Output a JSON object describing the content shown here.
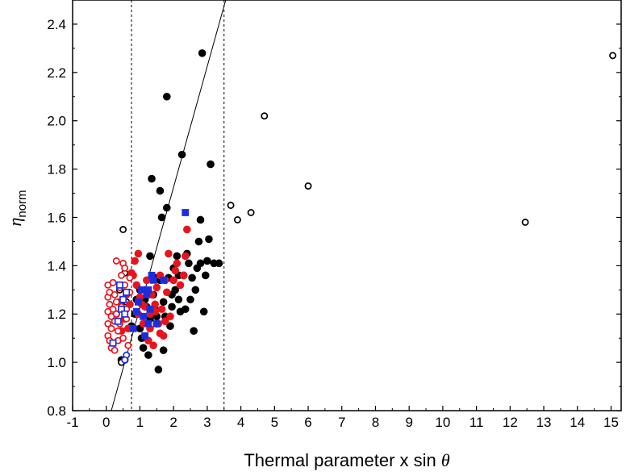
{
  "chart_data": {
    "type": "scatter",
    "xlabel_text": "Thermal parameter x sin ",
    "xlabel_symbol": "θ",
    "ylabel_symbol": "η",
    "ylabel_sub": "norm",
    "xlim": [
      -1,
      15.3
    ],
    "ylim": [
      0.8,
      2.5
    ],
    "x_ticks": [
      "-1",
      "0",
      "1",
      "2",
      "3",
      "4",
      "5",
      "6",
      "7",
      "8",
      "9",
      "10",
      "11",
      "12",
      "13",
      "14",
      "15"
    ],
    "y_ticks": [
      "0.8",
      "1.0",
      "1.2",
      "1.4",
      "1.6",
      "1.8",
      "2.0",
      "2.2",
      "2.4"
    ],
    "reference_lines": {
      "vertical_dashed": [
        0.75,
        3.5
      ],
      "fit_line": [
        [
          0.15,
          0.8
        ],
        [
          3.55,
          2.5
        ]
      ]
    },
    "colors": {
      "black": "#000000",
      "red": "#e8141c",
      "blue": "#1a2ee0"
    },
    "series": [
      {
        "marker": "filled-circle",
        "color": "#000000",
        "points": [
          [
            0.45,
            1.01
          ],
          [
            0.55,
            1.01
          ],
          [
            0.75,
            1.15
          ],
          [
            0.85,
            1.2
          ],
          [
            0.9,
            1.26
          ],
          [
            1.0,
            1.3
          ],
          [
            1.0,
            1.14
          ],
          [
            1.05,
            1.1
          ],
          [
            1.1,
            1.06
          ],
          [
            1.2,
            1.23
          ],
          [
            1.25,
            1.03
          ],
          [
            1.3,
            1.44
          ],
          [
            1.35,
            1.76
          ],
          [
            1.4,
            1.28
          ],
          [
            1.45,
            1.22
          ],
          [
            1.5,
            1.19
          ],
          [
            1.5,
            1.16
          ],
          [
            1.55,
            0.97
          ],
          [
            1.6,
            1.71
          ],
          [
            1.65,
            1.6
          ],
          [
            1.6,
            1.34
          ],
          [
            1.7,
            1.25
          ],
          [
            1.75,
            1.19
          ],
          [
            1.7,
            1.05
          ],
          [
            1.8,
            2.1
          ],
          [
            1.8,
            1.64
          ],
          [
            1.85,
            1.35
          ],
          [
            1.9,
            1.15
          ],
          [
            1.95,
            1.23
          ],
          [
            2.0,
            1.39
          ],
          [
            2.05,
            1.3
          ],
          [
            2.1,
            1.44
          ],
          [
            2.15,
            1.26
          ],
          [
            2.2,
            1.21
          ],
          [
            2.25,
            1.86
          ],
          [
            2.3,
            1.36
          ],
          [
            2.35,
            1.22
          ],
          [
            2.4,
            1.45
          ],
          [
            2.45,
            1.41
          ],
          [
            2.5,
            1.26
          ],
          [
            2.55,
            1.35
          ],
          [
            2.6,
            1.13
          ],
          [
            2.65,
            1.3
          ],
          [
            2.7,
            1.39
          ],
          [
            2.75,
            1.5
          ],
          [
            2.8,
            1.59
          ],
          [
            2.8,
            1.41
          ],
          [
            2.85,
            2.28
          ],
          [
            2.9,
            1.21
          ],
          [
            2.95,
            1.36
          ],
          [
            3.0,
            1.42
          ],
          [
            3.05,
            1.51
          ],
          [
            3.1,
            1.82
          ],
          [
            3.2,
            1.41
          ],
          [
            3.35,
            1.41
          ],
          [
            1.15,
            1.26
          ],
          [
            1.3,
            1.18
          ],
          [
            1.45,
            1.35
          ],
          [
            1.95,
            1.28
          ],
          [
            2.15,
            1.36
          ]
        ]
      },
      {
        "marker": "open-circle",
        "color": "#000000",
        "points": [
          [
            0.5,
            1.55
          ],
          [
            0.45,
            1.0
          ],
          [
            0.4,
            1.3
          ],
          [
            0.55,
            1.37
          ],
          [
            0.6,
            1.25
          ],
          [
            3.7,
            1.65
          ],
          [
            3.9,
            1.59
          ],
          [
            4.3,
            1.62
          ],
          [
            4.7,
            2.02
          ],
          [
            6.0,
            1.73
          ],
          [
            12.45,
            1.58
          ],
          [
            15.05,
            2.27
          ]
        ]
      },
      {
        "marker": "filled-circle",
        "color": "#e8141c",
        "points": [
          [
            0.3,
            1.2
          ],
          [
            0.4,
            1.25
          ],
          [
            0.55,
            1.18
          ],
          [
            0.6,
            1.28
          ],
          [
            0.65,
            1.14
          ],
          [
            0.7,
            1.24
          ],
          [
            0.75,
            1.37
          ],
          [
            0.8,
            1.36
          ],
          [
            0.85,
            1.42
          ],
          [
            0.9,
            1.32
          ],
          [
            0.95,
            1.2
          ],
          [
            1.0,
            1.27
          ],
          [
            1.05,
            1.24
          ],
          [
            1.1,
            1.16
          ],
          [
            1.15,
            1.3
          ],
          [
            1.2,
            1.34
          ],
          [
            1.25,
            1.09
          ],
          [
            1.3,
            1.2
          ],
          [
            1.35,
            1.28
          ],
          [
            1.4,
            1.07
          ],
          [
            1.45,
            1.24
          ],
          [
            1.5,
            1.31
          ],
          [
            1.55,
            1.16
          ],
          [
            1.6,
            1.36
          ],
          [
            1.65,
            1.22
          ],
          [
            1.7,
            1.11
          ],
          [
            1.75,
            1.34
          ],
          [
            1.8,
            1.29
          ],
          [
            1.85,
            1.45
          ],
          [
            1.9,
            1.19
          ],
          [
            2.0,
            1.34
          ],
          [
            2.05,
            1.38
          ],
          [
            2.1,
            1.41
          ],
          [
            2.2,
            1.32
          ],
          [
            2.3,
            1.36
          ],
          [
            2.35,
            1.44
          ],
          [
            2.4,
            1.55
          ],
          [
            0.45,
            1.13
          ],
          [
            0.95,
            1.45
          ],
          [
            1.15,
            1.23
          ],
          [
            1.3,
            1.14
          ],
          [
            1.45,
            1.21
          ],
          [
            1.6,
            1.12
          ],
          [
            1.75,
            1.17
          ]
        ]
      },
      {
        "marker": "open-circle",
        "color": "#e8141c",
        "points": [
          [
            0.05,
            1.11
          ],
          [
            0.05,
            1.16
          ],
          [
            0.05,
            1.21
          ],
          [
            0.05,
            1.27
          ],
          [
            0.05,
            1.32
          ],
          [
            0.1,
            1.09
          ],
          [
            0.1,
            1.24
          ],
          [
            0.1,
            1.29
          ],
          [
            0.15,
            1.06
          ],
          [
            0.15,
            1.14
          ],
          [
            0.15,
            1.19
          ],
          [
            0.2,
            1.22
          ],
          [
            0.2,
            1.33
          ],
          [
            0.25,
            1.05
          ],
          [
            0.25,
            1.17
          ],
          [
            0.25,
            1.28
          ],
          [
            0.3,
            1.42
          ],
          [
            0.3,
            1.2
          ],
          [
            0.3,
            1.25
          ],
          [
            0.35,
            1.13
          ],
          [
            0.35,
            1.09
          ],
          [
            0.4,
            1.31
          ],
          [
            0.4,
            1.16
          ],
          [
            0.45,
            1.23
          ],
          [
            0.45,
            1.36
          ],
          [
            0.5,
            1.41
          ],
          [
            0.5,
            1.1
          ],
          [
            0.55,
            1.39
          ],
          [
            0.55,
            1.32
          ],
          [
            0.6,
            1.18
          ],
          [
            0.6,
            1.22
          ],
          [
            0.65,
            1.07
          ],
          [
            0.7,
            1.29
          ],
          [
            0.7,
            1.35
          ]
        ]
      },
      {
        "marker": "filled-square",
        "color": "#1a2ee0",
        "points": [
          [
            0.8,
            1.14
          ],
          [
            0.95,
            1.25
          ],
          [
            1.05,
            1.3
          ],
          [
            1.1,
            1.19
          ],
          [
            1.15,
            1.11
          ],
          [
            1.2,
            1.28
          ],
          [
            1.25,
            1.3
          ],
          [
            1.3,
            1.22
          ],
          [
            1.35,
            1.36
          ],
          [
            1.4,
            1.34
          ],
          [
            1.5,
            1.16
          ],
          [
            1.7,
            1.34
          ],
          [
            2.35,
            1.62
          ],
          [
            0.9,
            1.21
          ],
          [
            1.25,
            1.16
          ]
        ]
      },
      {
        "marker": "open-square",
        "color": "#1a2ee0",
        "points": [
          [
            0.2,
            1.08
          ],
          [
            0.35,
            1.17
          ],
          [
            0.4,
            1.32
          ],
          [
            0.45,
            1.22
          ],
          [
            0.5,
            1.26
          ],
          [
            0.55,
            1.2
          ],
          [
            0.6,
            1.29
          ]
        ]
      },
      {
        "marker": "open-circle",
        "color": "#1a2ee0",
        "points": [
          [
            0.6,
            1.03
          ],
          [
            0.55,
            1.01
          ]
        ]
      }
    ]
  }
}
